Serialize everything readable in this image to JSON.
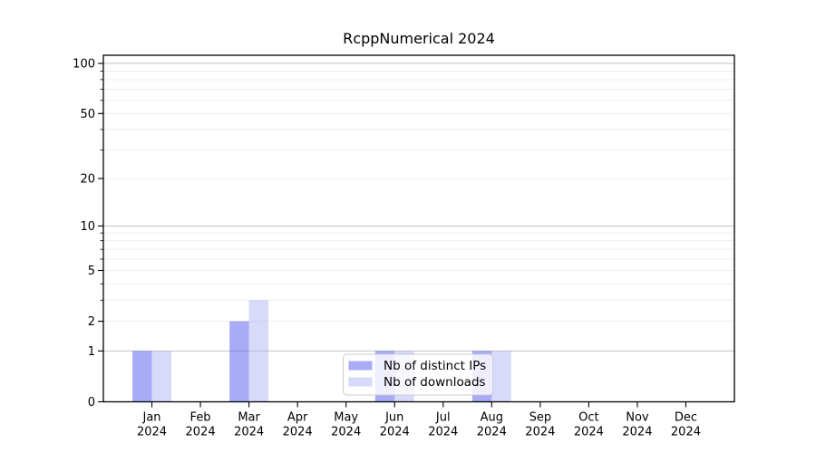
{
  "chart_data": {
    "type": "bar",
    "title": "RcppNumerical 2024",
    "categories": [
      "Jan",
      "Feb",
      "Mar",
      "Apr",
      "May",
      "Jun",
      "Jul",
      "Aug",
      "Sep",
      "Oct",
      "Nov",
      "Dec"
    ],
    "category_sublabel": "2024",
    "series": [
      {
        "name": "Nb of distinct IPs",
        "color": "rgba(81,87,238,0.5)",
        "values": [
          1,
          0,
          2,
          0,
          0,
          1,
          0,
          1,
          0,
          0,
          0,
          0
        ]
      },
      {
        "name": "Nb of downloads",
        "color": "rgba(177,181,245,0.5)",
        "values": [
          1,
          0,
          3,
          0,
          0,
          1,
          0,
          1,
          0,
          0,
          0,
          0
        ]
      }
    ],
    "xlabel": "",
    "ylabel": "",
    "yscale": "log1p",
    "ylim": [
      0,
      110
    ],
    "yticks": [
      0,
      1,
      2,
      5,
      10,
      20,
      50,
      100
    ],
    "grid_major": [
      1,
      10,
      100
    ],
    "grid_minor": [
      2,
      3,
      4,
      5,
      6,
      7,
      8,
      9,
      20,
      30,
      40,
      50,
      60,
      70,
      80,
      90
    ],
    "legend": {
      "position": "lower center"
    },
    "colors": {
      "major_grid": "#c2c2c2",
      "minor_grid": "#ededed",
      "axis": "#000000",
      "legend_bg": "rgba(255,255,255,0.8)",
      "legend_border": "#cccccc"
    }
  }
}
